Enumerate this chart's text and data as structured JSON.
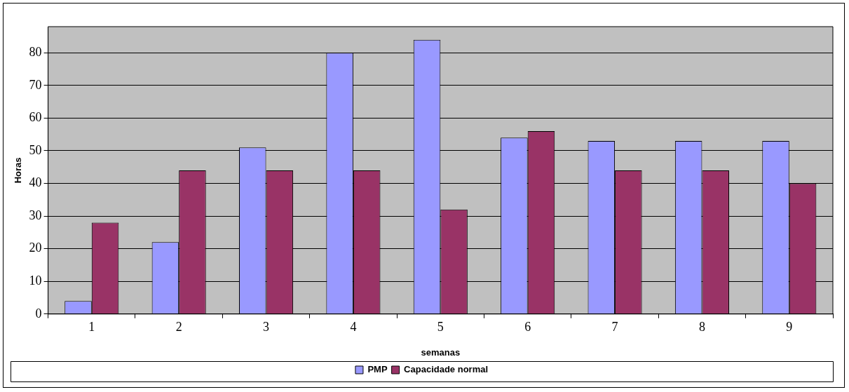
{
  "chart_data": {
    "type": "bar",
    "xlabel": "semanas",
    "ylabel": "Horas",
    "categories": [
      "1",
      "2",
      "3",
      "4",
      "5",
      "6",
      "7",
      "8",
      "9"
    ],
    "series": [
      {
        "name": "PMP",
        "color": "#9999ff",
        "values": [
          4,
          22,
          51,
          80,
          84,
          54,
          53,
          53,
          53
        ]
      },
      {
        "name": "Capacidade normal",
        "color": "#993366",
        "values": [
          28,
          44,
          44,
          44,
          32,
          56,
          44,
          44,
          40
        ]
      }
    ],
    "ylim": [
      0,
      88
    ],
    "yticks": [
      0,
      10,
      20,
      30,
      40,
      50,
      60,
      70,
      80
    ],
    "grid": "y",
    "legend": "bottom"
  }
}
